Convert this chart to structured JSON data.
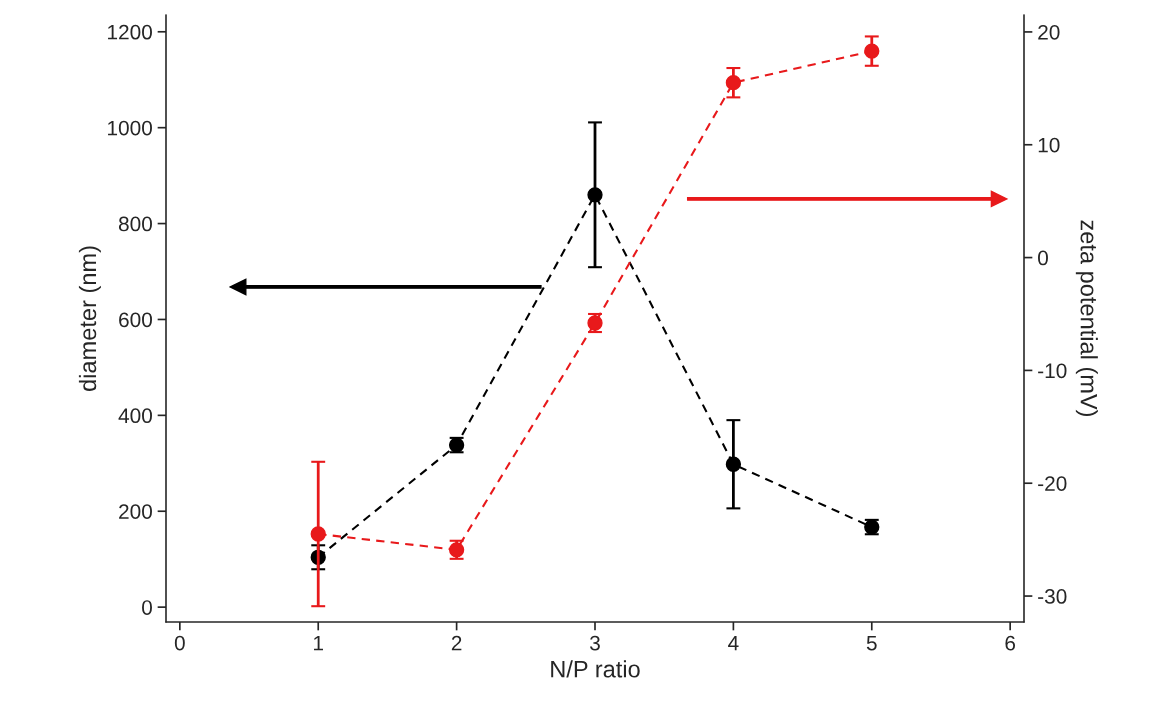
{
  "chart_data": {
    "type": "line",
    "xlabel": "N/P ratio",
    "ylabel": "diameter (nm)",
    "y2label": "zeta potential (mV)",
    "x": [
      1,
      2,
      3,
      4,
      5
    ],
    "series": [
      {
        "color": "#000000",
        "values": [
          104,
          338,
          860,
          298,
          167
        ],
        "errors": [
          25,
          15,
          151,
          92,
          15
        ],
        "marker": "circle",
        "line_style": "dashed"
      },
      {
        "axis": "y2",
        "color": "#e8191b",
        "values": [
          -24.5,
          -25.9,
          -5.8,
          15.5,
          18.3
        ],
        "errors": [
          6.4,
          0.8,
          0.8,
          1.3,
          1.3
        ],
        "marker": "circle",
        "line_style": "dashed"
      }
    ],
    "xlim": [
      -0.1,
      6.1
    ],
    "xticks": [
      0,
      1,
      2,
      3,
      4,
      5,
      6
    ],
    "ylim": [
      -31,
      1235
    ],
    "yticks": [
      0,
      200,
      400,
      600,
      800,
      1000,
      1200
    ],
    "y2lim": [
      -32.3,
      21.5
    ],
    "y2ticks": [
      -30,
      -20,
      -10,
      0,
      10,
      20
    ],
    "grid": false,
    "legend": false
  }
}
